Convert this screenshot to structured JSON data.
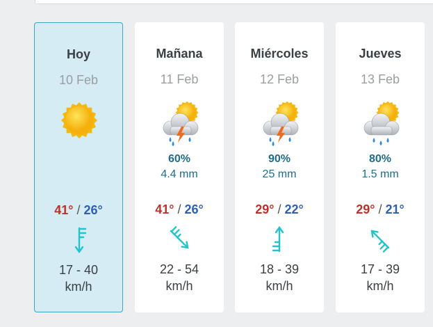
{
  "separator": "/",
  "days": [
    {
      "name": "Hoy",
      "date": "10 Feb",
      "max": "41°",
      "min": "26°",
      "wind": "17 - 40",
      "wind_unit": "km/h"
    },
    {
      "name": "Mañana",
      "date": "11 Feb",
      "rain_probability": "60%",
      "precipitation": "4.4 mm",
      "max": "41°",
      "min": "26°",
      "wind": "22 - 54",
      "wind_unit": "km/h"
    },
    {
      "name": "Miércoles",
      "date": "12 Feb",
      "rain_probability": "90%",
      "precipitation": "25 mm",
      "max": "29°",
      "min": "22°",
      "wind": "18 - 39",
      "wind_unit": "km/h"
    },
    {
      "name": "Jueves",
      "date": "13 Feb",
      "rain_probability": "80%",
      "precipitation": "1.5 mm",
      "max": "29°",
      "min": "21°",
      "wind": "17 - 39",
      "wind_unit": "km/h"
    }
  ]
}
